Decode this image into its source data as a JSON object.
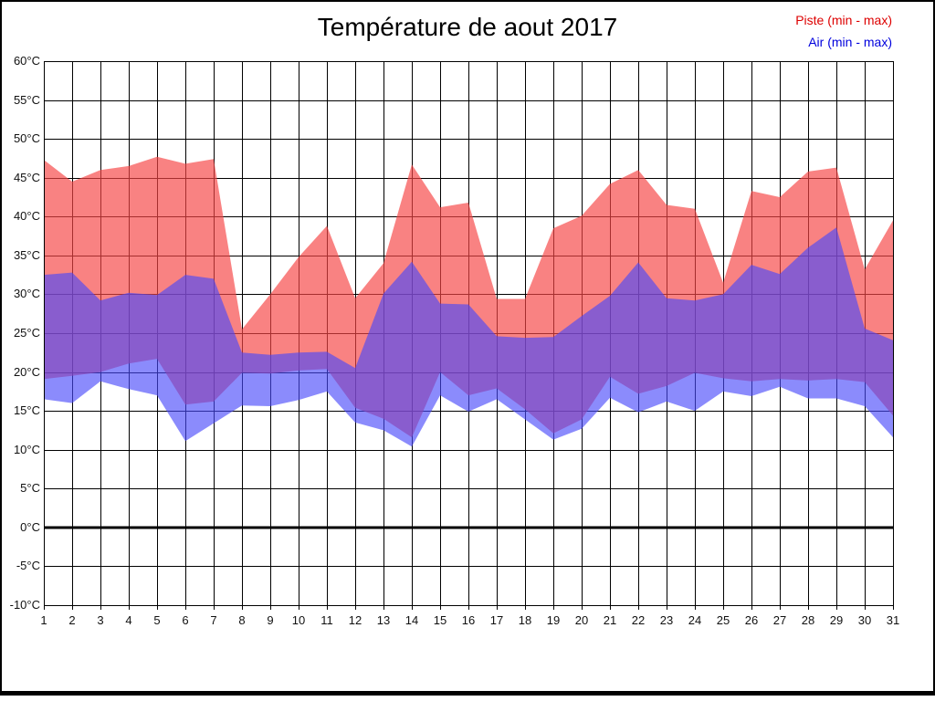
{
  "title": "Température de aout 2017",
  "legend": {
    "piste": {
      "label": "Piste (min - max)",
      "color": "#dd0000"
    },
    "air": {
      "label": "Air (min - max)",
      "color": "#0000dd"
    }
  },
  "chart_data": {
    "type": "area",
    "title": "Température de aout 2017",
    "xlabel": "",
    "ylabel": "",
    "x": [
      1,
      2,
      3,
      4,
      5,
      6,
      7,
      8,
      9,
      10,
      11,
      12,
      13,
      14,
      15,
      16,
      17,
      18,
      19,
      20,
      21,
      22,
      23,
      24,
      25,
      26,
      27,
      28,
      29,
      30,
      31
    ],
    "xticks": [
      "1",
      "2",
      "3",
      "4",
      "5",
      "6",
      "7",
      "8",
      "9",
      "10",
      "11",
      "12",
      "13",
      "14",
      "15",
      "16",
      "17",
      "18",
      "19",
      "20",
      "21",
      "22",
      "23",
      "24",
      "25",
      "26",
      "27",
      "28",
      "29",
      "30",
      "31"
    ],
    "yticks": [
      "60°C",
      "55°C",
      "50°C",
      "45°C",
      "40°C",
      "35°C",
      "30°C",
      "25°C",
      "20°C",
      "15°C",
      "10°C",
      "5°C",
      "0°C",
      "-5°C",
      "-10°C"
    ],
    "ylim": [
      -10,
      60
    ],
    "ytick_step": 5,
    "grid": true,
    "zero_line_value": 0,
    "legend_position": "top-right",
    "series": [
      {
        "name": "Piste (min - max)",
        "band": true,
        "max": [
          47.3,
          44.5,
          46.0,
          46.5,
          47.7,
          46.8,
          47.4,
          25.5,
          30.0,
          34.8,
          38.8,
          29.5,
          34.0,
          46.7,
          41.2,
          41.8,
          29.4,
          29.4,
          38.5,
          40.1,
          44.2,
          46.0,
          41.5,
          41.0,
          31.5,
          43.3,
          42.5,
          45.8,
          46.3,
          33.2,
          39.5
        ],
        "min": [
          19.1,
          19.5,
          20.0,
          21.1,
          21.7,
          15.8,
          16.2,
          19.9,
          19.8,
          20.2,
          20.4,
          15.4,
          14.0,
          11.6,
          20.0,
          17.0,
          17.9,
          15.2,
          12.1,
          13.9,
          19.4,
          17.2,
          18.2,
          19.9,
          19.2,
          18.8,
          19.1,
          18.9,
          19.1,
          18.7,
          14.4
        ],
        "fill": "rgba(246,68,68,0.67)"
      },
      {
        "name": "Air (min - max)",
        "band": true,
        "max": [
          32.5,
          32.8,
          29.2,
          30.2,
          29.9,
          32.5,
          32.0,
          22.5,
          22.2,
          22.5,
          22.6,
          20.5,
          30.1,
          34.2,
          28.8,
          28.7,
          24.6,
          24.4,
          24.5,
          27.2,
          29.8,
          34.1,
          29.5,
          29.2,
          30.0,
          33.8,
          32.6,
          36.0,
          38.6,
          25.6,
          24.1
        ],
        "min": [
          16.5,
          16.0,
          18.8,
          17.8,
          17.0,
          11.1,
          13.4,
          15.7,
          15.6,
          16.4,
          17.5,
          13.5,
          12.5,
          10.4,
          17.0,
          14.9,
          16.5,
          13.9,
          11.3,
          12.7,
          16.7,
          14.8,
          16.2,
          15.0,
          17.5,
          16.9,
          18.1,
          16.6,
          16.6,
          15.6,
          11.6
        ],
        "fill": "rgba(72,72,250,0.63)"
      }
    ],
    "colors": {
      "grid": "#000000",
      "zero_line": "#000000",
      "piste_text": "#dd0000",
      "air_text": "#0000dd",
      "overlap_note": "purple = overlap of piste and air bands"
    }
  }
}
